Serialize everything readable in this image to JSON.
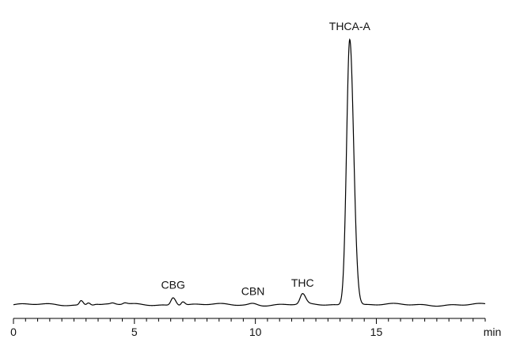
{
  "chart_data": {
    "type": "line",
    "title": "",
    "xlabel": "min",
    "ylabel": "",
    "xlim": [
      0,
      19.5
    ],
    "ylim": [
      0,
      1.0
    ],
    "x_ticks": [
      0,
      5,
      10,
      15
    ],
    "x_tick_labels": [
      "0",
      "5",
      "10",
      "15"
    ],
    "minor_tick_step": 0.5,
    "grid": false,
    "legend": "none",
    "line_color": "#000000",
    "baseline": 0.02,
    "peaks": [
      {
        "label": "",
        "x": 2.8,
        "height": 0.016,
        "width": 0.07
      },
      {
        "label": "",
        "x": 3.1,
        "height": 0.01,
        "width": 0.07
      },
      {
        "label": "",
        "x": 3.4,
        "height": 0.004,
        "width": 0.1
      },
      {
        "label": "",
        "x": 4.1,
        "height": 0.004,
        "width": 0.08
      },
      {
        "label": "",
        "x": 4.6,
        "height": 0.005,
        "width": 0.08
      },
      {
        "label": "CBG",
        "x": 6.6,
        "height": 0.028,
        "width": 0.09
      },
      {
        "label": "",
        "x": 7.0,
        "height": 0.013,
        "width": 0.07
      },
      {
        "label": "CBN",
        "x": 9.9,
        "height": 0.006,
        "width": 0.15
      },
      {
        "label": "THC",
        "x": 11.95,
        "height": 0.035,
        "width": 0.1
      },
      {
        "label": "THCA-A",
        "x": 13.9,
        "height": 0.93,
        "width": 0.13
      }
    ],
    "series": [
      {
        "values_note": "",
        "label_visible": false
      }
    ]
  }
}
